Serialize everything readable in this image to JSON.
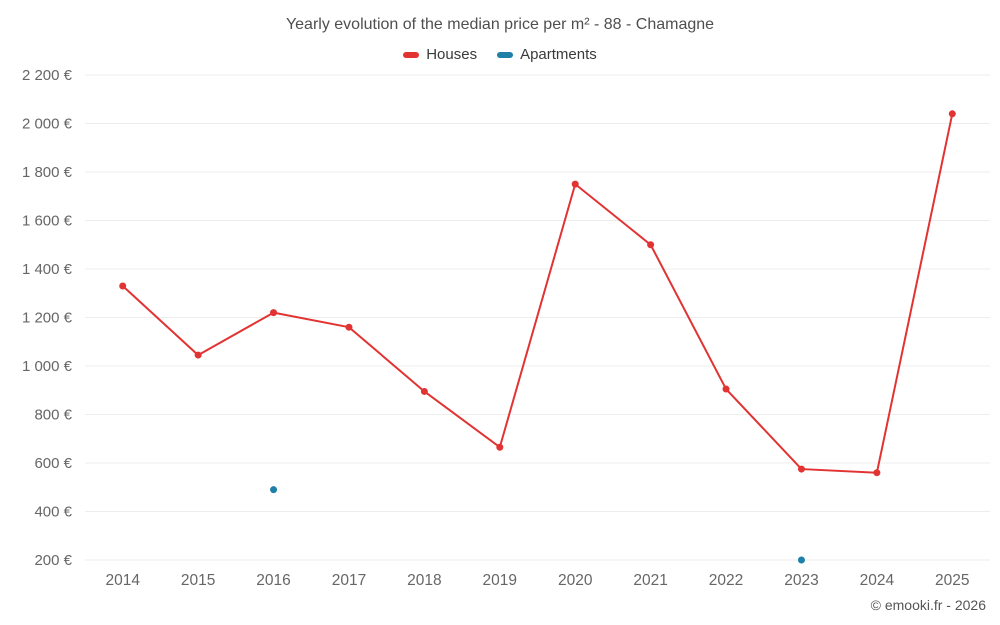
{
  "title": "Yearly evolution of the median price per m² - 88 - Chamagne",
  "legend": [
    {
      "label": "Houses",
      "color": "#e23333"
    },
    {
      "label": "Apartments",
      "color": "#1e7fa8"
    }
  ],
  "footer": {
    "credit": "© emooki.fr - 2026"
  },
  "axis": {
    "text_color": "#666666",
    "grid_color": "#ededed"
  },
  "chart_data": {
    "type": "line",
    "title": "Yearly evolution of the median price per m² - 88 - Chamagne",
    "categories": [
      "2014",
      "2015",
      "2016",
      "2017",
      "2018",
      "2019",
      "2020",
      "2021",
      "2022",
      "2023",
      "2024",
      "2025"
    ],
    "series": [
      {
        "name": "Houses",
        "color": "#e23333",
        "values": [
          1330,
          1045,
          1220,
          1160,
          895,
          665,
          1750,
          1500,
          905,
          575,
          560,
          2040
        ]
      },
      {
        "name": "Apartments",
        "color": "#1e7fa8",
        "values": [
          null,
          null,
          490,
          null,
          null,
          null,
          null,
          null,
          null,
          200,
          null,
          null
        ]
      }
    ],
    "xlabel": "",
    "ylabel": "",
    "ylim": [
      200,
      2200
    ],
    "ytick_step": 200,
    "y_suffix": " €",
    "y_thousands_separator": " ",
    "grid": "horizontal",
    "legend_position": "top",
    "marker": "circle"
  }
}
